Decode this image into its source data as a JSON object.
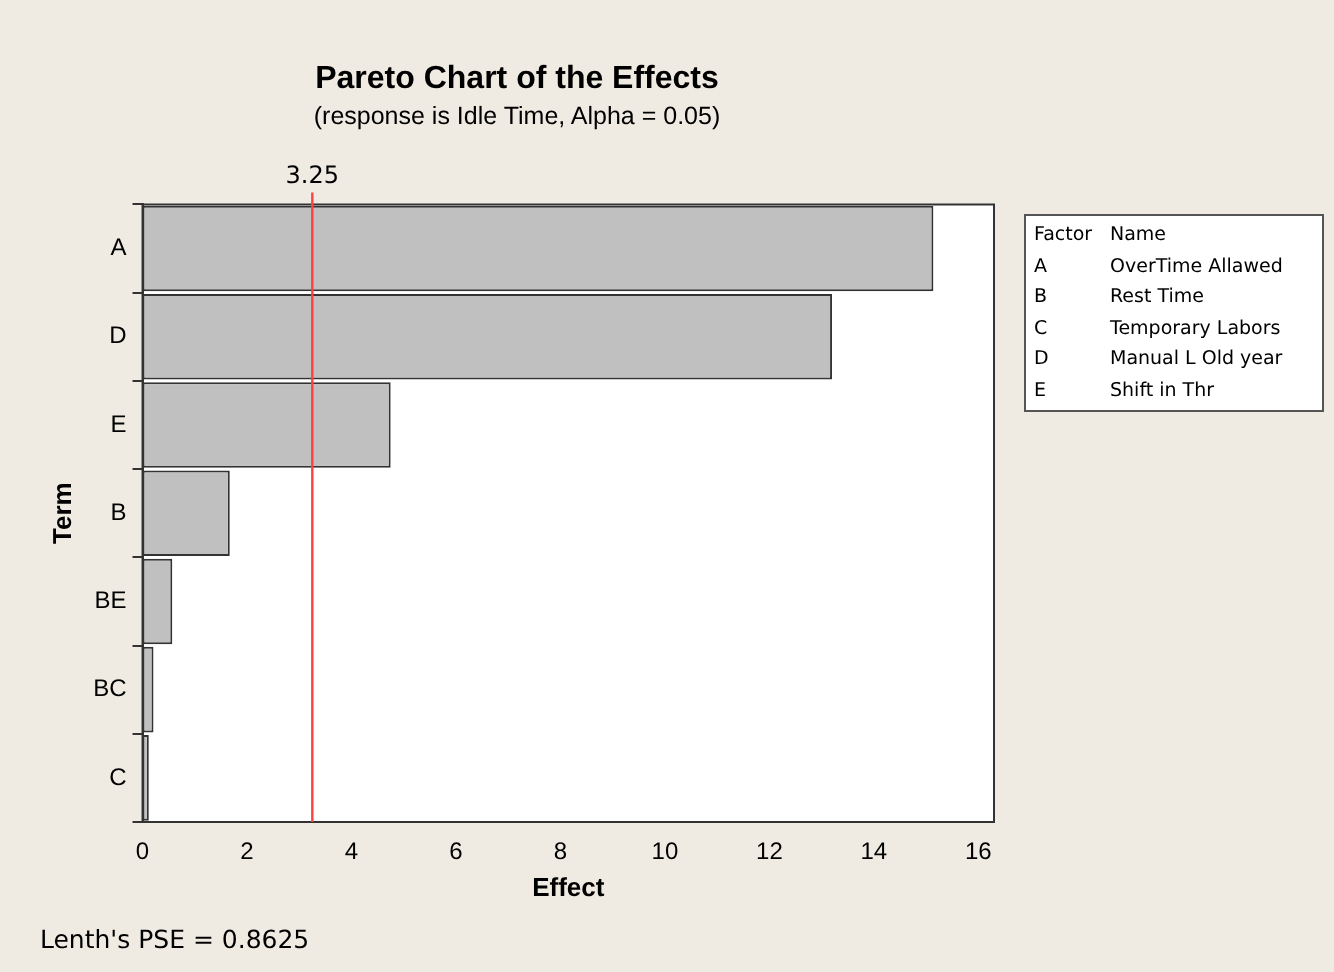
{
  "chart_data": {
    "type": "bar",
    "orientation": "horizontal",
    "title": "Pareto Chart of the Effects",
    "subtitle": "(response is Idle Time, Alpha = 0.05)",
    "xlabel": "Effect",
    "ylabel": "Term",
    "categories": [
      "A",
      "D",
      "E",
      "B",
      "BE",
      "BC",
      "C"
    ],
    "values": [
      15.14,
      13.2,
      4.75,
      1.67,
      0.57,
      0.21,
      0.12
    ],
    "color": "#c0c0c0",
    "xlim": [
      0,
      16.3
    ],
    "xticks": [
      0,
      2,
      4,
      6,
      8,
      10,
      12,
      14,
      16
    ],
    "ref_lines": [
      {
        "axis": "x",
        "value": 3.25,
        "label": "3.25",
        "color": "#ff4040"
      }
    ],
    "legend": false,
    "grid": false,
    "annotations": [
      "Factor",
      "Name",
      "A",
      "OverTime Allawed",
      "B",
      "Rest Time",
      "C",
      "Temporary Labors",
      "D",
      "Manual L Old year",
      "E",
      "Shift in Thr",
      "Lenth's PSE = 0.8625"
    ]
  }
}
